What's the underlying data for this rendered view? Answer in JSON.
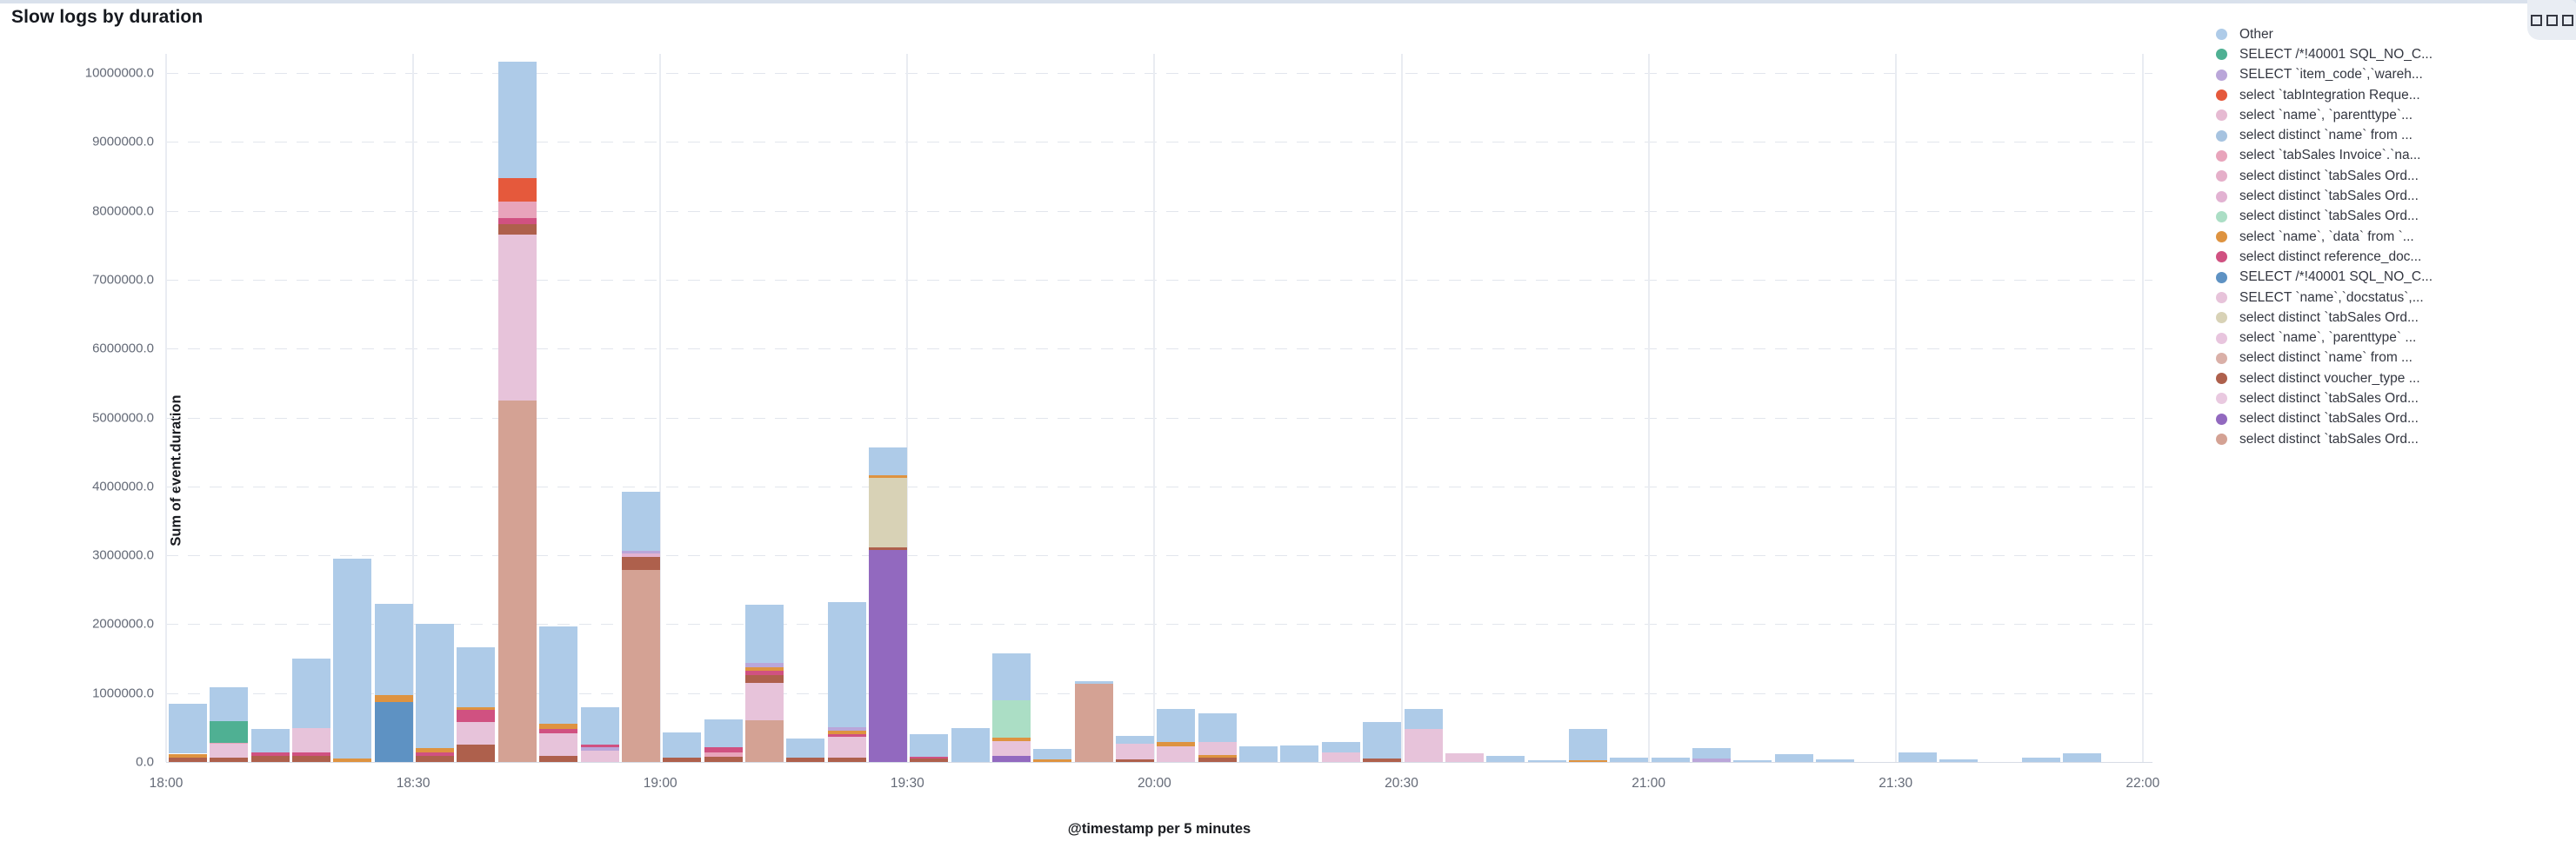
{
  "header": {
    "title": "Slow logs by duration",
    "options_icon": "three-squares-grid-icon"
  },
  "chart_data": {
    "type": "bar",
    "stacked": true,
    "title": "Slow logs by duration",
    "xlabel": "@timestamp per 5 minutes",
    "ylabel": "Sum of event.duration",
    "ylim": [
      0,
      10300000
    ],
    "grid": "horizontal-dashed, vertical-solid",
    "legend_position": "right",
    "y_ticks": [
      "0.0",
      "1000000.0",
      "2000000.0",
      "3000000.0",
      "4000000.0",
      "5000000.0",
      "6000000.0",
      "7000000.0",
      "8000000.0",
      "9000000.0",
      "10000000.0"
    ],
    "y_tick_values": [
      0,
      1000000,
      2000000,
      3000000,
      4000000,
      5000000,
      6000000,
      7000000,
      8000000,
      9000000,
      10000000
    ],
    "x_ticks": [
      "18:00",
      "18:30",
      "19:00",
      "19:30",
      "20:00",
      "20:30",
      "21:00",
      "21:30",
      "22:00"
    ],
    "x_interval": "5 minutes",
    "series": [
      {
        "label": "Other",
        "color": "#aecbe8"
      },
      {
        "label": "SELECT /*!40001 SQL_NO_C...",
        "color": "#4fb093"
      },
      {
        "label": "SELECT `item_code`,`wareh...",
        "color": "#baa6d9"
      },
      {
        "label": "select `tabIntegration Reque...",
        "color": "#e5593c"
      },
      {
        "label": "select `name`, `parenttype`...",
        "color": "#e6bad2"
      },
      {
        "label": "select distinct `name` from ...",
        "color": "#a6c3e0"
      },
      {
        "label": "select `tabSales Invoice`.`na...",
        "color": "#e8a4bb"
      },
      {
        "label": "select distinct `tabSales Ord...",
        "color": "#e5afc9"
      },
      {
        "label": "select distinct `tabSales Ord...",
        "color": "#e2b2d2"
      },
      {
        "label": "select distinct `tabSales Ord...",
        "color": "#abdec5"
      },
      {
        "label": "select `name`, `data` from `...",
        "color": "#de9340"
      },
      {
        "label": "select distinct reference_doc...",
        "color": "#d05181"
      },
      {
        "label": "SELECT /*!40001 SQL_NO_C...",
        "color": "#5e92c3"
      },
      {
        "label": "SELECT `name`,`docstatus`,...",
        "color": "#e7c3da"
      },
      {
        "label": "select distinct `tabSales Ord...",
        "color": "#d8d2b6"
      },
      {
        "label": "select `name`, `parenttype` ...",
        "color": "#e8c5de"
      },
      {
        "label": "select distinct `name` from ...",
        "color": "#dab0a8"
      },
      {
        "label": "select distinct voucher_type ...",
        "color": "#ae604c"
      },
      {
        "label": "select distinct `tabSales Ord...",
        "color": "#e9c9e0"
      },
      {
        "label": "select distinct `tabSales Ord...",
        "color": "#9269bf"
      },
      {
        "label": "select distinct `tabSales Ord...",
        "color": "#d4a294"
      }
    ],
    "bars": [
      {
        "time": "18:00",
        "segments": [
          [
            17,
            60000
          ],
          [
            10,
            60000
          ],
          [
            0,
            730000
          ]
        ]
      },
      {
        "time": "18:05",
        "segments": [
          [
            17,
            60000
          ],
          [
            13,
            200000
          ],
          [
            6,
            20000
          ],
          [
            1,
            310000
          ],
          [
            0,
            500000
          ]
        ]
      },
      {
        "time": "18:10",
        "segments": [
          [
            17,
            90000
          ],
          [
            11,
            50000
          ],
          [
            0,
            340000
          ]
        ]
      },
      {
        "time": "18:15",
        "segments": [
          [
            17,
            90000
          ],
          [
            11,
            50000
          ],
          [
            13,
            350000
          ],
          [
            0,
            1010000
          ]
        ]
      },
      {
        "time": "18:20",
        "segments": [
          [
            10,
            50000
          ],
          [
            0,
            2900000
          ]
        ]
      },
      {
        "time": "18:25",
        "segments": [
          [
            12,
            870000
          ],
          [
            10,
            100000
          ],
          [
            0,
            1330000
          ]
        ]
      },
      {
        "time": "18:30",
        "segments": [
          [
            17,
            90000
          ],
          [
            11,
            55000
          ],
          [
            10,
            55000
          ],
          [
            0,
            1800000
          ]
        ]
      },
      {
        "time": "18:35",
        "segments": [
          [
            17,
            250000
          ],
          [
            13,
            330000
          ],
          [
            11,
            180000
          ],
          [
            10,
            35000
          ],
          [
            0,
            870000
          ]
        ]
      },
      {
        "time": "18:40",
        "segments": [
          [
            20,
            5240000
          ],
          [
            13,
            2420000
          ],
          [
            17,
            150000
          ],
          [
            11,
            90000
          ],
          [
            6,
            240000
          ],
          [
            3,
            340000
          ],
          [
            0,
            1690000
          ]
        ]
      },
      {
        "time": "18:45",
        "segments": [
          [
            17,
            85000
          ],
          [
            13,
            330000
          ],
          [
            11,
            65000
          ],
          [
            10,
            70000
          ],
          [
            0,
            1420000
          ]
        ]
      },
      {
        "time": "18:50",
        "segments": [
          [
            13,
            170000
          ],
          [
            2,
            40000
          ],
          [
            11,
            40000
          ],
          [
            0,
            540000
          ]
        ]
      },
      {
        "time": "18:55",
        "segments": [
          [
            20,
            2790000
          ],
          [
            17,
            190000
          ],
          [
            8,
            50000
          ],
          [
            2,
            40000
          ],
          [
            0,
            850000
          ]
        ]
      },
      {
        "time": "19:00",
        "segments": [
          [
            17,
            60000
          ],
          [
            0,
            370000
          ]
        ]
      },
      {
        "time": "19:05",
        "segments": [
          [
            17,
            80000
          ],
          [
            6,
            60000
          ],
          [
            11,
            70000
          ],
          [
            0,
            410000
          ]
        ]
      },
      {
        "time": "19:10",
        "segments": [
          [
            20,
            600000
          ],
          [
            13,
            550000
          ],
          [
            17,
            110000
          ],
          [
            11,
            60000
          ],
          [
            10,
            60000
          ],
          [
            2,
            60000
          ],
          [
            0,
            840000
          ]
        ]
      },
      {
        "time": "19:15",
        "segments": [
          [
            17,
            60000
          ],
          [
            0,
            280000
          ]
        ]
      },
      {
        "time": "19:20",
        "segments": [
          [
            17,
            60000
          ],
          [
            13,
            300000
          ],
          [
            11,
            40000
          ],
          [
            10,
            60000
          ],
          [
            2,
            40000
          ],
          [
            0,
            1820000
          ]
        ]
      },
      {
        "time": "19:25",
        "segments": [
          [
            19,
            3080000
          ],
          [
            17,
            40000
          ],
          [
            14,
            1000000
          ],
          [
            10,
            40000
          ],
          [
            0,
            410000
          ]
        ]
      },
      {
        "time": "19:30",
        "segments": [
          [
            17,
            50000
          ],
          [
            11,
            30000
          ],
          [
            0,
            320000
          ]
        ]
      },
      {
        "time": "19:35",
        "segments": [
          [
            0,
            490000
          ]
        ]
      },
      {
        "time": "19:40",
        "segments": [
          [
            19,
            90000
          ],
          [
            13,
            210000
          ],
          [
            10,
            50000
          ],
          [
            9,
            550000
          ],
          [
            0,
            680000
          ]
        ]
      },
      {
        "time": "19:45",
        "segments": [
          [
            10,
            35000
          ],
          [
            0,
            155000
          ]
        ]
      },
      {
        "time": "19:50",
        "segments": [
          [
            20,
            1130000
          ],
          [
            0,
            40000
          ]
        ]
      },
      {
        "time": "19:55",
        "segments": [
          [
            17,
            40000
          ],
          [
            13,
            230000
          ],
          [
            0,
            110000
          ]
        ]
      },
      {
        "time": "20:00",
        "segments": [
          [
            13,
            230000
          ],
          [
            10,
            60000
          ],
          [
            0,
            480000
          ]
        ]
      },
      {
        "time": "20:05",
        "segments": [
          [
            17,
            60000
          ],
          [
            10,
            40000
          ],
          [
            13,
            190000
          ],
          [
            0,
            420000
          ]
        ]
      },
      {
        "time": "20:10",
        "segments": [
          [
            0,
            230000
          ]
        ]
      },
      {
        "time": "20:15",
        "segments": [
          [
            0,
            240000
          ]
        ]
      },
      {
        "time": "20:20",
        "segments": [
          [
            13,
            140000
          ],
          [
            0,
            150000
          ]
        ]
      },
      {
        "time": "20:25",
        "segments": [
          [
            17,
            55000
          ],
          [
            0,
            525000
          ]
        ]
      },
      {
        "time": "20:30",
        "segments": [
          [
            13,
            480000
          ],
          [
            0,
            290000
          ]
        ]
      },
      {
        "time": "20:35",
        "segments": [
          [
            13,
            130000
          ]
        ]
      },
      {
        "time": "20:40",
        "segments": [
          [
            0,
            85000
          ]
        ]
      },
      {
        "time": "20:45",
        "segments": [
          [
            0,
            30000
          ]
        ]
      },
      {
        "time": "20:50",
        "segments": [
          [
            10,
            25000
          ],
          [
            0,
            455000
          ]
        ]
      },
      {
        "time": "20:55",
        "segments": [
          [
            0,
            60000
          ]
        ]
      },
      {
        "time": "21:00",
        "segments": [
          [
            0,
            60000
          ]
        ]
      },
      {
        "time": "21:05",
        "segments": [
          [
            2,
            50000
          ],
          [
            0,
            150000
          ]
        ]
      },
      {
        "time": "21:10",
        "segments": [
          [
            0,
            20000
          ]
        ]
      },
      {
        "time": "21:15",
        "segments": [
          [
            0,
            110000
          ]
        ]
      },
      {
        "time": "21:20",
        "segments": [
          [
            0,
            35000
          ]
        ]
      },
      {
        "time": "21:25",
        "segments": []
      },
      {
        "time": "21:30",
        "segments": [
          [
            0,
            140000
          ]
        ]
      },
      {
        "time": "21:35",
        "segments": [
          [
            0,
            35000
          ]
        ]
      },
      {
        "time": "21:40",
        "segments": []
      },
      {
        "time": "21:45",
        "segments": [
          [
            0,
            60000
          ]
        ]
      },
      {
        "time": "21:50",
        "segments": [
          [
            0,
            130000
          ]
        ]
      },
      {
        "time": "21:55",
        "segments": []
      }
    ]
  }
}
